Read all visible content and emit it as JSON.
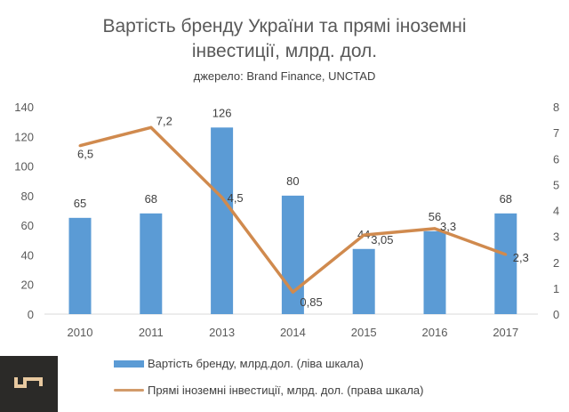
{
  "chart_data": {
    "type": "bar+line",
    "title": "Вартість бренду України та прямі іноземні",
    "title_line2": "інвестиції, млрд. дол.",
    "subtitle": "джерело:  Brand Finance, UNCTAD",
    "categories": [
      "2010",
      "2011",
      "2013",
      "2014",
      "2015",
      "2016",
      "2017"
    ],
    "series": [
      {
        "name": "Вартість бренду, млрд.дол. (ліва шкала)",
        "type": "bar",
        "axis": "left",
        "color": "#5b9bd5",
        "values": [
          65,
          68,
          126,
          80,
          44,
          56,
          68
        ],
        "labels": [
          "65",
          "68",
          "126",
          "80",
          "44",
          "56",
          "68"
        ]
      },
      {
        "name": "Прямі іноземні інвестиції, млрд. дол. (права шкала)",
        "type": "line",
        "axis": "right",
        "color": "#d08a4e",
        "values": [
          6.5,
          7.2,
          4.5,
          0.85,
          3.05,
          3.3,
          2.3
        ],
        "labels": [
          "6,5",
          "7,2",
          "4,5",
          "0,85",
          "3,05",
          "3,3",
          "2,3"
        ]
      }
    ],
    "y_left": {
      "range": [
        0,
        140
      ],
      "ticks": [
        "0",
        "20",
        "40",
        "60",
        "80",
        "100",
        "120",
        "140"
      ]
    },
    "y_right": {
      "range": [
        0,
        8
      ],
      "ticks": [
        "0",
        "1",
        "2",
        "3",
        "4",
        "5",
        "6",
        "7",
        "8"
      ]
    },
    "grid": false,
    "legend": "bottom"
  }
}
